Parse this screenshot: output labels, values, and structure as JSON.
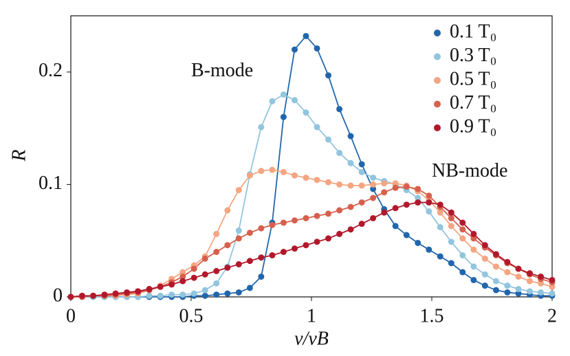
{
  "chart_data": {
    "type": "line",
    "xlabel": "v/vB",
    "ylabel": "R",
    "x": [
      0,
      0.047,
      0.093,
      0.14,
      0.186,
      0.233,
      0.279,
      0.326,
      0.372,
      0.419,
      0.465,
      0.512,
      0.558,
      0.605,
      0.651,
      0.698,
      0.744,
      0.791,
      0.837,
      0.884,
      0.93,
      0.977,
      1.023,
      1.07,
      1.116,
      1.163,
      1.209,
      1.256,
      1.302,
      1.349,
      1.395,
      1.442,
      1.488,
      1.535,
      1.581,
      1.628,
      1.674,
      1.721,
      1.767,
      1.814,
      1.86,
      1.907,
      1.953,
      2.0
    ],
    "series": [
      {
        "name": "0.1 T₀",
        "color": "#2166ac",
        "values": [
          0,
          0,
          0,
          0,
          0,
          0,
          0,
          0,
          0,
          0,
          0,
          0.001,
          0.001,
          0.002,
          0.003,
          0.004,
          0.008,
          0.018,
          0.066,
          0.16,
          0.22,
          0.232,
          0.221,
          0.197,
          0.167,
          0.143,
          0.118,
          0.096,
          0.078,
          0.063,
          0.055,
          0.048,
          0.042,
          0.036,
          0.03,
          0.022,
          0.015,
          0.01,
          0.006,
          0.004,
          0.003,
          0.002,
          0.001,
          0.001
        ]
      },
      {
        "name": "0.3 T₀",
        "color": "#92c5de",
        "values": [
          0,
          0,
          0,
          0,
          0,
          0,
          0,
          0.001,
          0.001,
          0.002,
          0.002,
          0.003,
          0.006,
          0.012,
          0.027,
          0.059,
          0.109,
          0.151,
          0.174,
          0.18,
          0.175,
          0.164,
          0.151,
          0.14,
          0.128,
          0.119,
          0.111,
          0.106,
          0.103,
          0.1,
          0.095,
          0.088,
          0.076,
          0.062,
          0.049,
          0.037,
          0.027,
          0.02,
          0.014,
          0.01,
          0.007,
          0.005,
          0.004,
          0.003
        ]
      },
      {
        "name": "0.5 T₀",
        "color": "#f4a582",
        "values": [
          0,
          0,
          0.001,
          0.001,
          0.001,
          0.002,
          0.003,
          0.006,
          0.01,
          0.016,
          0.022,
          0.028,
          0.036,
          0.056,
          0.077,
          0.095,
          0.108,
          0.112,
          0.113,
          0.111,
          0.108,
          0.106,
          0.104,
          0.102,
          0.1,
          0.099,
          0.099,
          0.1,
          0.101,
          0.101,
          0.099,
          0.094,
          0.086,
          0.075,
          0.063,
          0.052,
          0.042,
          0.034,
          0.027,
          0.022,
          0.018,
          0.014,
          0.012,
          0.009
        ]
      },
      {
        "name": "0.7 T₀",
        "color": "#d6604d",
        "values": [
          0,
          0,
          0.001,
          0.001,
          0.002,
          0.003,
          0.004,
          0.006,
          0.009,
          0.013,
          0.018,
          0.025,
          0.034,
          0.04,
          0.046,
          0.052,
          0.057,
          0.061,
          0.064,
          0.066,
          0.068,
          0.07,
          0.072,
          0.074,
          0.077,
          0.08,
          0.084,
          0.088,
          0.093,
          0.097,
          0.098,
          0.096,
          0.09,
          0.08,
          0.07,
          0.06,
          0.052,
          0.044,
          0.037,
          0.03,
          0.025,
          0.02,
          0.016,
          0.013
        ]
      },
      {
        "name": "0.9 T₀",
        "color": "#b2182b",
        "values": [
          0,
          0.001,
          0.001,
          0.002,
          0.003,
          0.004,
          0.005,
          0.007,
          0.009,
          0.011,
          0.014,
          0.017,
          0.02,
          0.023,
          0.026,
          0.029,
          0.032,
          0.035,
          0.037,
          0.04,
          0.043,
          0.046,
          0.049,
          0.052,
          0.056,
          0.06,
          0.065,
          0.07,
          0.075,
          0.079,
          0.082,
          0.084,
          0.084,
          0.082,
          0.075,
          0.066,
          0.056,
          0.046,
          0.038,
          0.031,
          0.025,
          0.021,
          0.018,
          0.015
        ]
      }
    ],
    "xlim": [
      0,
      2
    ],
    "xticks": [
      0,
      0.5,
      1,
      1.5,
      2
    ],
    "ylim": [
      0,
      0.25
    ],
    "yticks": [
      0,
      0.1,
      0.2
    ],
    "annotations": [
      {
        "text": "B-mode",
        "x": 0.5,
        "y": 0.2
      },
      {
        "text": "NB-mode",
        "x": 1.5,
        "y": 0.111
      }
    ],
    "legend": "upper right",
    "grid": false
  }
}
